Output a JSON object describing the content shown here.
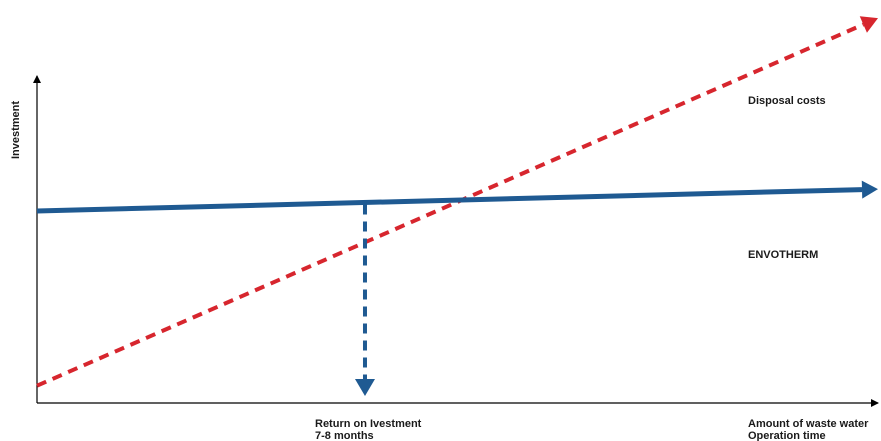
{
  "chart_data": {
    "type": "line",
    "ylabel": "Investment",
    "xlabel_lines": [
      "Amount of waste water",
      "Operation time"
    ],
    "x": [
      0,
      1
    ],
    "xlim": [
      0,
      1
    ],
    "ylim": [
      0,
      1
    ],
    "series": [
      {
        "name": "Disposal costs",
        "x": [
          0,
          1
        ],
        "y": [
          0.02,
          1.03
        ],
        "color": "#d7262e",
        "style": "dashed"
      },
      {
        "name": "ENVOTHERM",
        "x": [
          0,
          1
        ],
        "y": [
          0.5,
          0.56
        ],
        "color": "#1f5a92",
        "style": "solid"
      }
    ],
    "annotation": {
      "lines": [
        "Return on Ivestment",
        "7-8 months"
      ],
      "x": 0.39,
      "color": "#1f5a92",
      "style": "dashed-arrow-down"
    },
    "grid": false,
    "legend": "inline-labels"
  }
}
